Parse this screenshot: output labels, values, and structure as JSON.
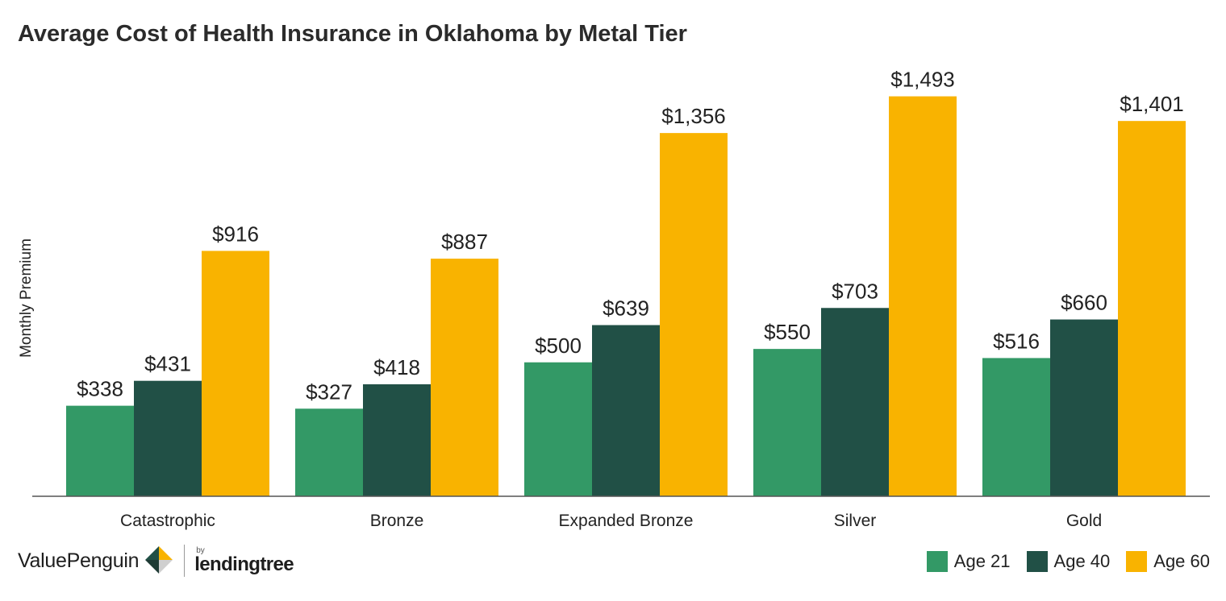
{
  "title": "Average Cost of Health Insurance in Oklahoma by Metal Tier",
  "chart_data": {
    "type": "bar",
    "title": "Average Cost of Health Insurance in Oklahoma by Metal Tier",
    "xlabel": "",
    "ylabel": "Monthly Premium",
    "ylim": [
      0,
      1600
    ],
    "grid": false,
    "legend_position": "bottom-right",
    "categories": [
      "Catastrophic",
      "Bronze",
      "Expanded Bronze",
      "Silver",
      "Gold"
    ],
    "series": [
      {
        "name": "Age 21",
        "color": "#339966",
        "values": [
          338,
          327,
          500,
          550,
          516
        ],
        "labels": [
          "$338",
          "$327",
          "$500",
          "$550",
          "$516"
        ]
      },
      {
        "name": "Age 40",
        "color": "#215046",
        "values": [
          431,
          418,
          639,
          703,
          660
        ],
        "labels": [
          "$431",
          "$418",
          "$639",
          "$703",
          "$660"
        ]
      },
      {
        "name": "Age 60",
        "color": "#F9B300",
        "values": [
          916,
          887,
          1356,
          1493,
          1401
        ],
        "labels": [
          "$916",
          "$887",
          "$1,356",
          "$1,493",
          "$1,401"
        ]
      }
    ]
  },
  "footer": {
    "brand": "ValuePenguin",
    "partner_by": "by",
    "partner": "lendingtree"
  }
}
